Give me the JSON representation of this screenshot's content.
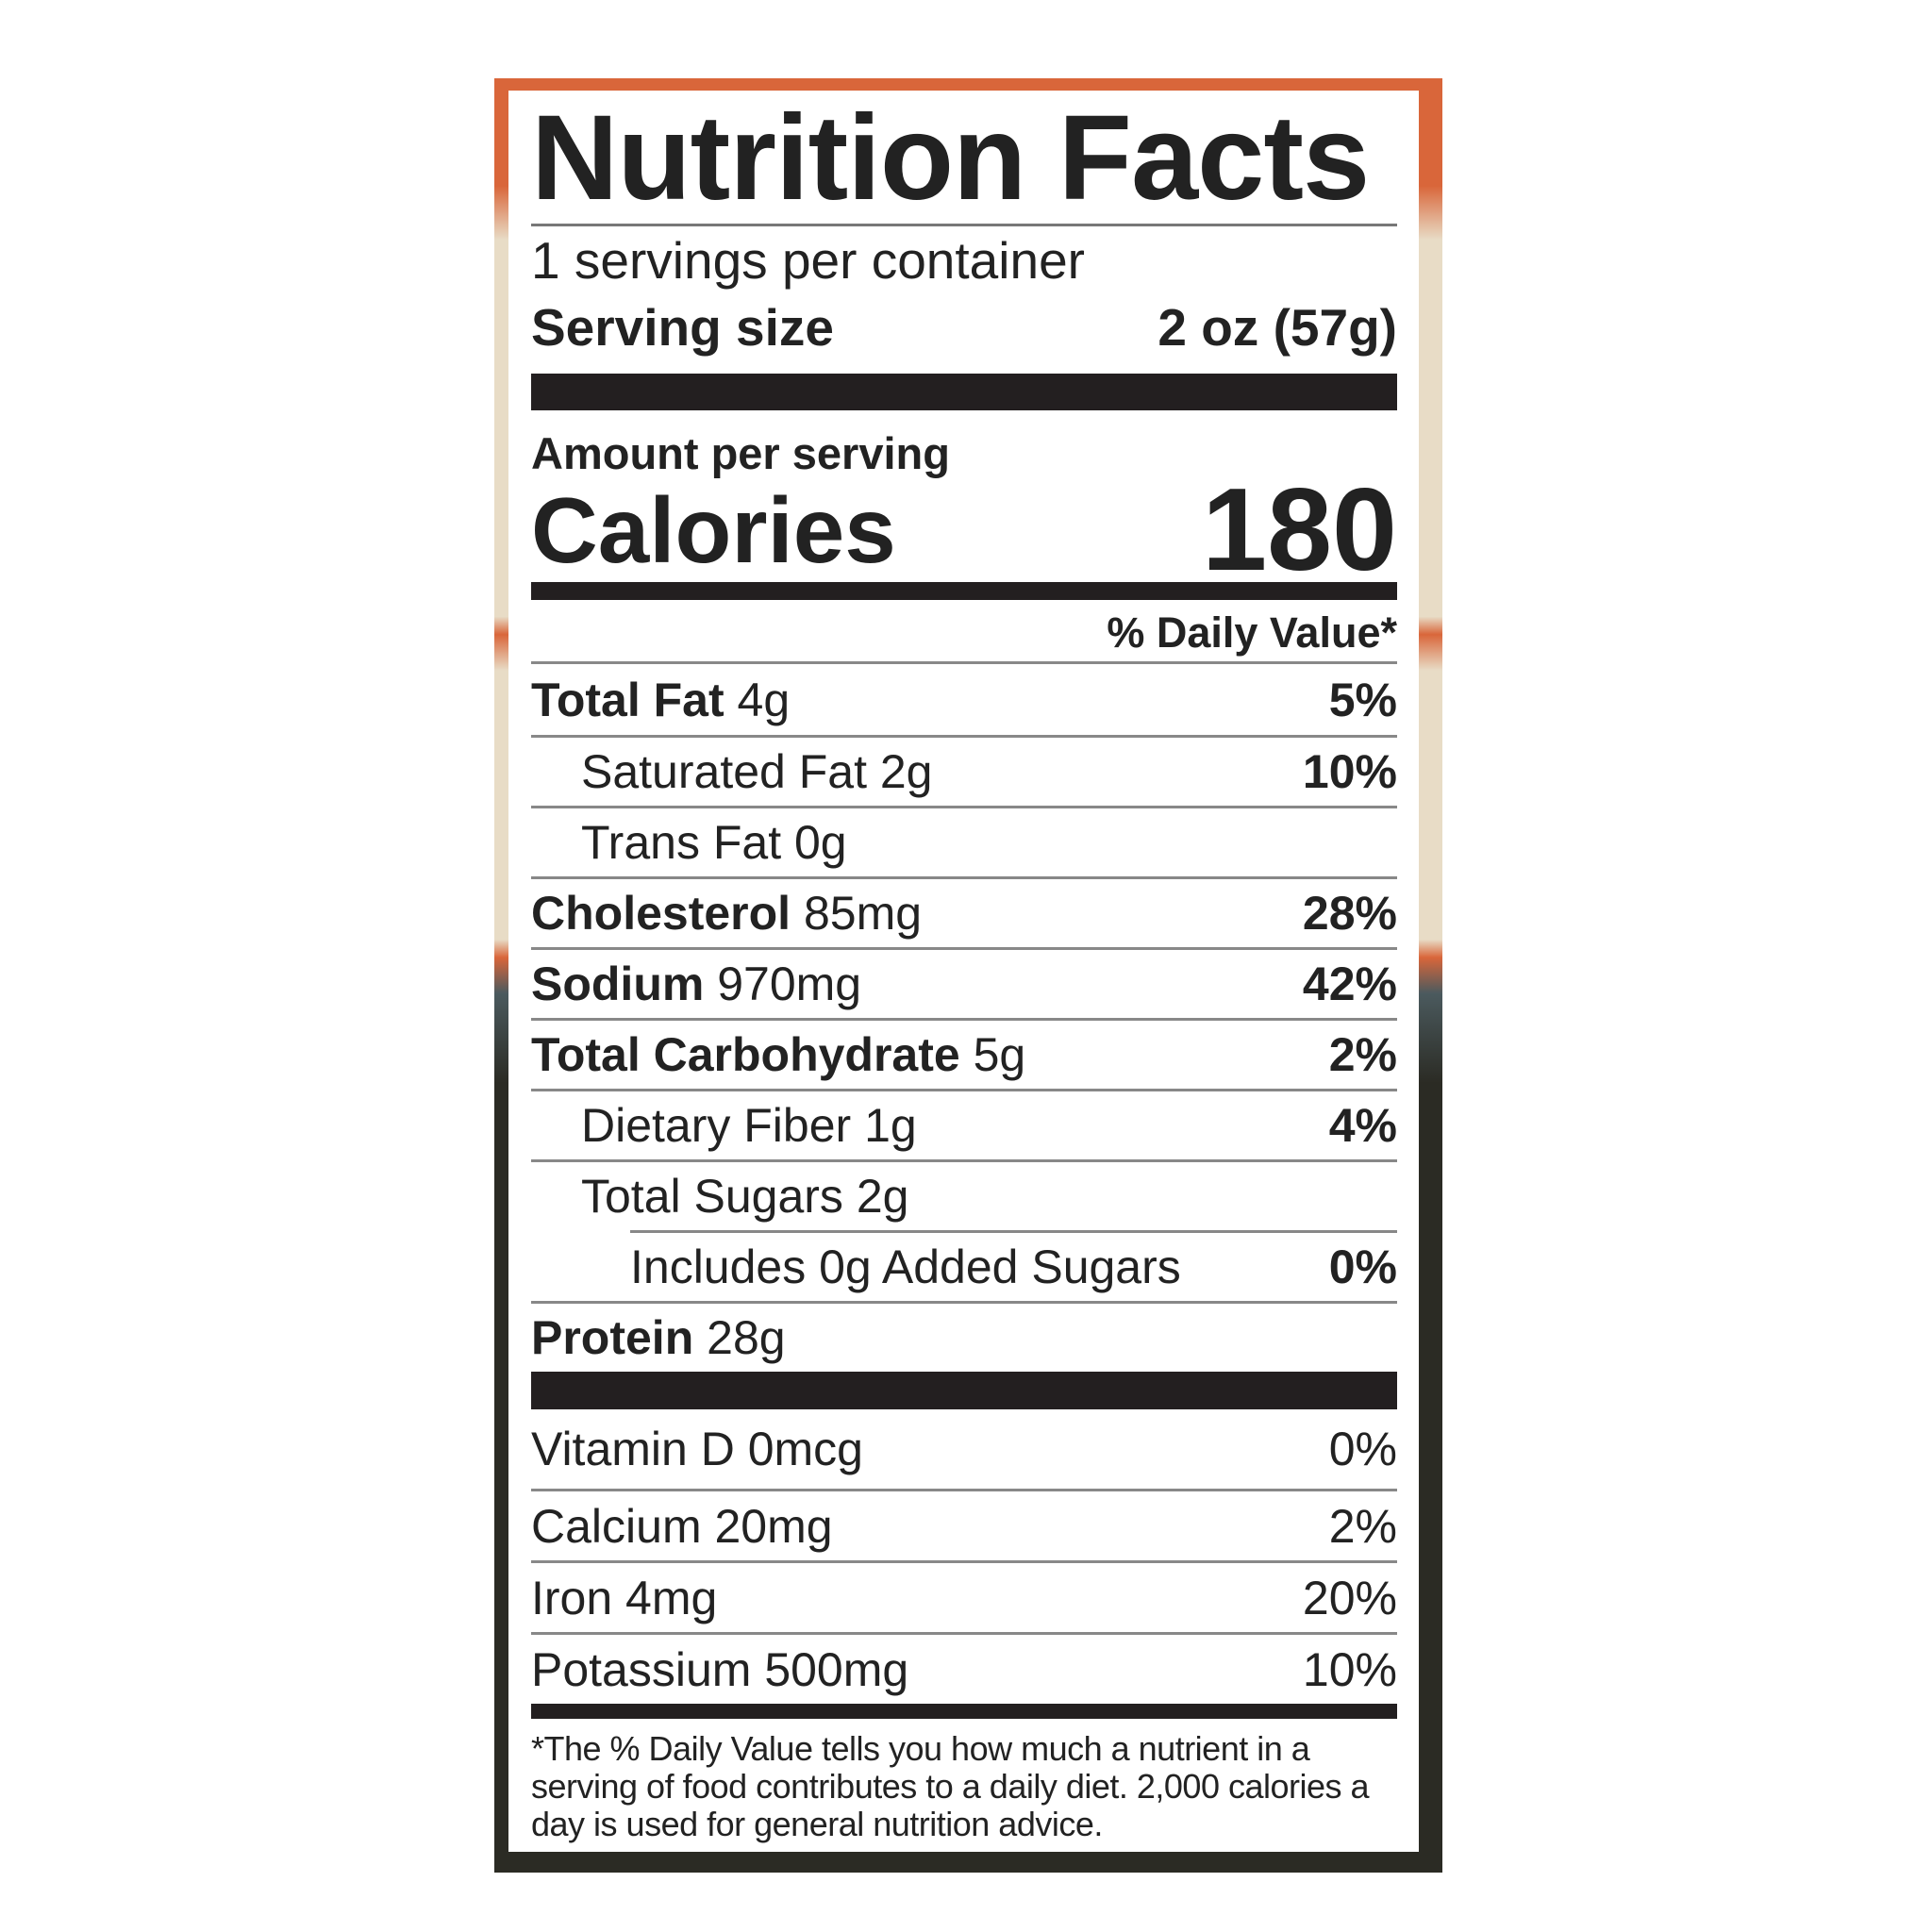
{
  "title": "Nutrition Facts",
  "servings_per_container": "1 servings per container",
  "serving_size": {
    "label": "Serving size",
    "value": "2 oz (57g)"
  },
  "amount_per_serving": "Amount per serving",
  "calories": {
    "label": "Calories",
    "value": "180"
  },
  "daily_value_header": "% Daily Value*",
  "nutrients": [
    {
      "name": "Total Fat",
      "amount": "4g",
      "dv": "5%",
      "bold": true,
      "indent": 0
    },
    {
      "name": "Saturated Fat",
      "amount": "2g",
      "dv": "10%",
      "bold": false,
      "indent": 1
    },
    {
      "name": "Trans Fat",
      "amount": "0g",
      "dv": "",
      "bold": false,
      "indent": 1
    },
    {
      "name": "Cholesterol",
      "amount": "85mg",
      "dv": "28%",
      "bold": true,
      "indent": 0
    },
    {
      "name": "Sodium",
      "amount": "970mg",
      "dv": "42%",
      "bold": true,
      "indent": 0
    },
    {
      "name": "Total Carbohydrate",
      "amount": "5g",
      "dv": "2%",
      "bold": true,
      "indent": 0
    },
    {
      "name": "Dietary Fiber",
      "amount": "1g",
      "dv": "4%",
      "bold": false,
      "indent": 1
    },
    {
      "name": "Total Sugars",
      "amount": "2g",
      "dv": "",
      "bold": false,
      "indent": 1
    },
    {
      "name": "Includes 0g Added Sugars",
      "amount": "",
      "dv": "0%",
      "bold": false,
      "indent": 2
    },
    {
      "name": "Protein",
      "amount": "28g",
      "dv": "",
      "bold": true,
      "indent": 0
    }
  ],
  "vitamins": [
    {
      "name": "Vitamin D 0mcg",
      "dv": "0%"
    },
    {
      "name": "Calcium 20mg",
      "dv": "2%"
    },
    {
      "name": "Iron 4mg",
      "dv": "20%"
    },
    {
      "name": "Potassium 500mg",
      "dv": "10%"
    }
  ],
  "footnote": "*The % Daily Value tells you how much a nutrient in a serving of food contributes to a daily diet. 2,000 calories a day is used for general nutrition advice.",
  "colors": {
    "frame_orange": "#d9663a",
    "frame_beige": "#e8dcc6",
    "frame_dark": "#2b2b24",
    "ink": "#231f20"
  }
}
